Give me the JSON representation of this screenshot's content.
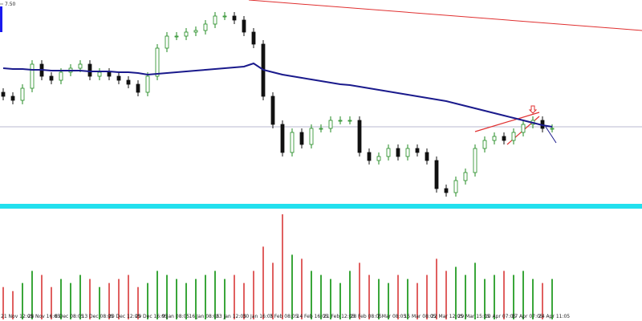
{
  "chart_data": {
    "type": "candlestick",
    "ylim": [
      5.0,
      7.55
    ],
    "yticks": [
      {
        "value": 7.5,
        "label": "7.50"
      }
    ],
    "x_labels": [
      "21 Nov 12:05",
      "28 Nov 16:05",
      "6 Dec 08:05",
      "13 Dec 08:05",
      "20 Dec 12:05",
      "29 Dec 16:05",
      "9 Jan 08:05",
      "16 Jan 08:05",
      "23 Jan 12:05",
      "30 Jan 16:05",
      "7 Feb 08:05",
      "14 Feb 16:05",
      "21 Feb 12:05",
      "28 Feb 08:05",
      "7 Mar 08:05",
      "15 Mar 08:05",
      "22 Mar 12:05",
      "29 Mar 15:05",
      "10 Apr 07:05",
      "17 Apr 07:05",
      "24 Apr 11:05"
    ],
    "open": [
      6.4,
      6.35,
      6.3,
      6.45,
      6.75,
      6.6,
      6.55,
      6.65,
      6.7,
      6.75,
      6.6,
      6.65,
      6.6,
      6.55,
      6.5,
      6.4,
      6.6,
      6.95,
      7.1,
      7.1,
      7.15,
      7.17,
      7.25,
      7.35,
      7.35,
      7.3,
      7.15,
      7.0,
      6.35,
      6.0,
      5.65,
      5.9,
      5.75,
      5.95,
      5.95,
      6.05,
      6.05,
      6.05,
      5.65,
      5.55,
      5.6,
      5.7,
      5.6,
      5.7,
      5.65,
      5.55,
      5.2,
      5.15,
      5.3,
      5.4,
      5.7,
      5.8,
      5.85,
      5.8,
      5.9,
      6.0,
      6.05,
      5.95
    ],
    "high": [
      6.45,
      6.4,
      6.5,
      6.8,
      6.8,
      6.65,
      6.7,
      6.75,
      6.8,
      6.8,
      6.7,
      6.7,
      6.65,
      6.6,
      6.55,
      6.65,
      7.0,
      7.15,
      7.15,
      7.2,
      7.22,
      7.3,
      7.4,
      7.4,
      7.4,
      7.35,
      7.2,
      7.05,
      6.4,
      6.05,
      5.95,
      5.95,
      6.0,
      6.0,
      6.1,
      6.1,
      6.1,
      6.1,
      5.7,
      5.65,
      5.75,
      5.75,
      5.75,
      5.75,
      5.7,
      5.6,
      5.25,
      5.35,
      5.45,
      5.75,
      5.85,
      5.9,
      5.9,
      5.95,
      6.05,
      6.1,
      6.1,
      6.0
    ],
    "low": [
      6.3,
      6.25,
      6.25,
      6.4,
      6.55,
      6.5,
      6.5,
      6.6,
      6.65,
      6.55,
      6.55,
      6.55,
      6.5,
      6.45,
      6.35,
      6.35,
      6.55,
      6.9,
      7.05,
      7.05,
      7.1,
      7.12,
      7.2,
      7.3,
      7.25,
      7.1,
      6.95,
      6.3,
      5.95,
      5.6,
      5.6,
      5.7,
      5.7,
      5.9,
      5.9,
      6.0,
      6.0,
      5.6,
      5.5,
      5.5,
      5.55,
      5.55,
      5.55,
      5.6,
      5.5,
      5.15,
      5.1,
      5.1,
      5.25,
      5.35,
      5.65,
      5.75,
      5.75,
      5.75,
      5.85,
      5.95,
      5.9,
      5.9
    ],
    "close": [
      6.35,
      6.3,
      6.45,
      6.75,
      6.6,
      6.55,
      6.65,
      6.7,
      6.75,
      6.6,
      6.65,
      6.6,
      6.55,
      6.5,
      6.4,
      6.6,
      6.95,
      7.1,
      7.1,
      7.15,
      7.17,
      7.25,
      7.35,
      7.35,
      7.3,
      7.15,
      7.0,
      6.35,
      6.0,
      5.65,
      5.9,
      5.75,
      5.95,
      5.95,
      6.05,
      6.05,
      6.05,
      5.65,
      5.55,
      5.6,
      5.7,
      5.6,
      5.7,
      5.65,
      5.55,
      5.2,
      5.15,
      5.3,
      5.4,
      5.7,
      5.8,
      5.85,
      5.8,
      5.9,
      6.0,
      6.05,
      5.95,
      5.95
    ],
    "ma": [
      6.7,
      6.69,
      6.69,
      6.68,
      6.68,
      6.67,
      6.67,
      6.67,
      6.67,
      6.66,
      6.66,
      6.66,
      6.65,
      6.65,
      6.64,
      6.62,
      6.63,
      6.64,
      6.65,
      6.66,
      6.67,
      6.68,
      6.69,
      6.7,
      6.71,
      6.72,
      6.76,
      6.68,
      6.65,
      6.62,
      6.6,
      6.58,
      6.56,
      6.54,
      6.52,
      6.5,
      6.49,
      6.47,
      6.45,
      6.43,
      6.41,
      6.39,
      6.37,
      6.35,
      6.33,
      6.31,
      6.29,
      6.26,
      6.23,
      6.2,
      6.17,
      6.14,
      6.11,
      6.08,
      6.05,
      6.02,
      5.99,
      5.97
    ],
    "ma_color": "#1a1a8c",
    "bull_color": "#1f8a1f",
    "bear_color": "#111111",
    "volume": [
      40,
      35,
      45,
      60,
      55,
      40,
      50,
      45,
      55,
      50,
      40,
      45,
      50,
      55,
      40,
      45,
      60,
      55,
      50,
      45,
      50,
      55,
      60,
      50,
      55,
      45,
      60,
      90,
      70,
      130,
      80,
      75,
      60,
      55,
      50,
      45,
      60,
      70,
      55,
      50,
      45,
      55,
      50,
      45,
      55,
      75,
      60,
      65,
      55,
      70,
      50,
      55,
      60,
      55,
      60,
      50,
      45,
      50
    ],
    "vlim": [
      0,
      135
    ],
    "vol_up_color": "#3aa63a",
    "vol_down_color": "#e06060"
  }
}
